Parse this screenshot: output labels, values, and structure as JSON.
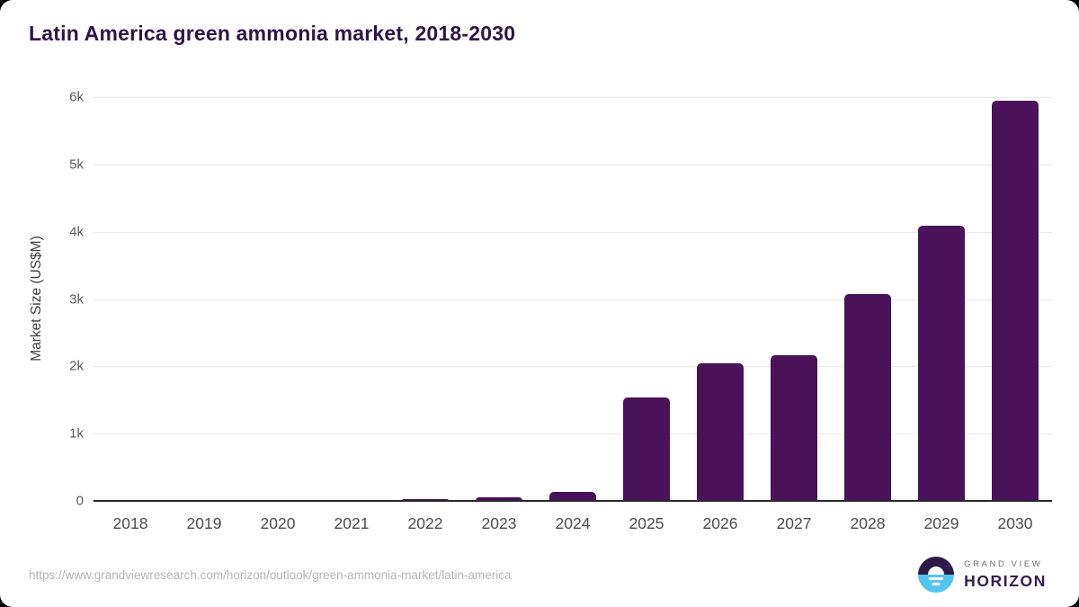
{
  "page": {
    "title": "Latin America green ammonia market, 2018-2030",
    "source_url": "https://www.grandviewresearch.com/horizon/outlook/green-ammonia-market/latin-america"
  },
  "logo": {
    "line1": "GRAND VIEW",
    "line2": "HORIZON"
  },
  "colors": {
    "bar": "#4a1259",
    "title": "#2f1447",
    "gridline": "#e9e9e9",
    "axis_line": "#282828",
    "tick_label": "#5a5a5a",
    "source_text": "#b5b5b5",
    "logo_purple": "#2e1a47",
    "logo_blue": "#55c5f0"
  },
  "chart_data": {
    "type": "bar",
    "title": "Latin America green ammonia market, 2018-2030",
    "categories": [
      "2018",
      "2019",
      "2020",
      "2021",
      "2022",
      "2023",
      "2024",
      "2025",
      "2026",
      "2027",
      "2028",
      "2029",
      "2030"
    ],
    "values": [
      1,
      2,
      5,
      10,
      30,
      55,
      130,
      1540,
      2050,
      2160,
      3080,
      4090,
      5950
    ],
    "xlabel": "",
    "ylabel": "Market Size (US$M)",
    "ylim": [
      0,
      6000
    ],
    "yticks": {
      "labels": [
        "0",
        "1k",
        "2k",
        "3k",
        "4k",
        "5k",
        "6k"
      ],
      "values": [
        0,
        1000,
        2000,
        3000,
        4000,
        5000,
        6000
      ]
    },
    "grid": "horizontal",
    "legend": "none",
    "bar_color": "#4a1259"
  }
}
